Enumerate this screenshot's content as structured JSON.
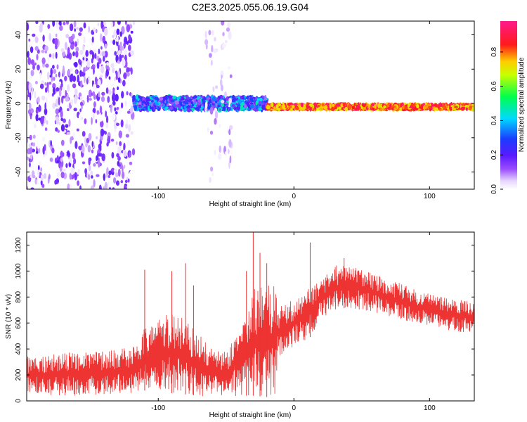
{
  "title": "C2E3.2025.055.06.19.G04",
  "chart_data": [
    {
      "type": "heatmap",
      "title": "C2E3.2025.055.06.19.G04",
      "xlabel": "Height of straight line (km)",
      "ylabel": "Frequency (Hz)",
      "xlim": [
        -197,
        133
      ],
      "ylim": [
        -50,
        48
      ],
      "xticks": [
        -100,
        0,
        100
      ],
      "xtick_labels": [
        "-100",
        "0",
        "100"
      ],
      "yticks": [
        -40,
        -20,
        0,
        20,
        40
      ],
      "ytick_labels": [
        "-40",
        "-20",
        "0",
        "20",
        "40"
      ],
      "grid": false,
      "colorbar": {
        "label": "Normalized spectral amplitude",
        "range": [
          0,
          0.98
        ],
        "ticks": [
          0,
          0.2,
          0.4,
          0.6,
          0.8
        ],
        "tick_labels": [
          "0.0",
          "0.2",
          "0.4",
          "0.6",
          "0.8"
        ],
        "colormap": "rainbow (white to purple to blue to cyan to green to yellow to red to magenta)"
      },
      "regions": [
        {
          "x_range": [
            -197,
            -118
          ],
          "freq_range": [
            -50,
            48
          ],
          "amplitude": [
            0.0,
            0.2
          ],
          "description": "broadband noise"
        },
        {
          "x_range": [
            -118,
            -20
          ],
          "freq_center": 0,
          "freq_halfwidth": 4,
          "amplitude": [
            0.1,
            0.5
          ],
          "description": "signal band with noise"
        },
        {
          "x_range": [
            -65,
            -45
          ],
          "freq_range": [
            -50,
            48
          ],
          "amplitude": [
            0.0,
            0.1
          ],
          "description": "faint noise column"
        },
        {
          "x_range": [
            -20,
            133
          ],
          "freq_center": -2,
          "freq_halfwidth": 1.5,
          "amplitude": [
            0.7,
            0.98
          ],
          "description": "strong narrow carrier line"
        }
      ]
    },
    {
      "type": "line",
      "xlabel": "Height of straight line (km)",
      "ylabel": "SNR (10 * v/v)",
      "xlim": [
        -197,
        133
      ],
      "ylim": [
        0,
        1300
      ],
      "xticks": [
        -100,
        0,
        100
      ],
      "xtick_labels": [
        "-100",
        "0",
        "100"
      ],
      "yticks": [
        0,
        200,
        400,
        600,
        800,
        1000,
        1200
      ],
      "ytick_labels": [
        "0",
        "200",
        "400",
        "600",
        "800",
        "1000",
        "1200"
      ],
      "grid": false,
      "color": "#ee3333",
      "envelope": [
        {
          "x": -197,
          "low": 60,
          "high": 340
        },
        {
          "x": -180,
          "low": 40,
          "high": 360
        },
        {
          "x": -160,
          "low": 40,
          "high": 380
        },
        {
          "x": -140,
          "low": 50,
          "high": 380
        },
        {
          "x": -120,
          "low": 60,
          "high": 420
        },
        {
          "x": -110,
          "low": 80,
          "high": 560
        },
        {
          "x": -100,
          "low": 70,
          "high": 620
        },
        {
          "x": -90,
          "low": 60,
          "high": 700
        },
        {
          "x": -80,
          "low": 50,
          "high": 620
        },
        {
          "x": -70,
          "low": 40,
          "high": 520
        },
        {
          "x": -60,
          "low": 20,
          "high": 400
        },
        {
          "x": -50,
          "low": 30,
          "high": 380
        },
        {
          "x": -40,
          "low": 40,
          "high": 560
        },
        {
          "x": -30,
          "low": 40,
          "high": 860
        },
        {
          "x": -20,
          "low": 30,
          "high": 900
        },
        {
          "x": -14,
          "low": 30,
          "high": 880
        },
        {
          "x": -12,
          "low": 300,
          "high": 760
        },
        {
          "x": 0,
          "low": 420,
          "high": 780
        },
        {
          "x": 10,
          "low": 460,
          "high": 880
        },
        {
          "x": 20,
          "low": 620,
          "high": 960
        },
        {
          "x": 30,
          "low": 700,
          "high": 1040
        },
        {
          "x": 40,
          "low": 720,
          "high": 1060
        },
        {
          "x": 50,
          "low": 700,
          "high": 1020
        },
        {
          "x": 60,
          "low": 680,
          "high": 980
        },
        {
          "x": 70,
          "low": 650,
          "high": 940
        },
        {
          "x": 80,
          "low": 620,
          "high": 900
        },
        {
          "x": 90,
          "low": 600,
          "high": 860
        },
        {
          "x": 100,
          "low": 570,
          "high": 830
        },
        {
          "x": 110,
          "low": 550,
          "high": 800
        },
        {
          "x": 120,
          "low": 530,
          "high": 780
        },
        {
          "x": 133,
          "low": 520,
          "high": 770
        }
      ],
      "spikes": [
        {
          "x": -110,
          "y": 1010
        },
        {
          "x": -90,
          "y": 1000
        },
        {
          "x": -80,
          "y": 1060
        },
        {
          "x": -74,
          "y": 890
        },
        {
          "x": -35,
          "y": 1000
        },
        {
          "x": -30,
          "y": 1300
        },
        {
          "x": -25,
          "y": 1140
        },
        {
          "x": -20,
          "y": 1060
        },
        {
          "x": 12,
          "y": 1220
        },
        {
          "x": 37,
          "y": 1100
        }
      ]
    }
  ]
}
